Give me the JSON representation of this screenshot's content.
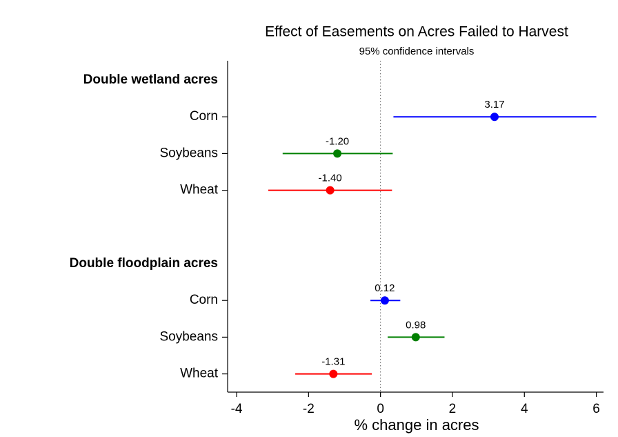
{
  "chart_data": {
    "type": "forest",
    "title": "Effect of Easements on Acres Failed to Harvest",
    "subtitle": "95% confidence intervals",
    "xlabel": "% change in acres",
    "colors": [
      "#0000ff",
      "#008000",
      "#ff0000"
    ],
    "groups": [
      {
        "name": "Double wetland acres",
        "categories": [
          "Corn",
          "Soybeans",
          "Wheat"
        ],
        "values": [
          3.17,
          -1.2,
          -1.4
        ],
        "value_labels": [
          "3.17",
          "-1.20",
          "-1.40"
        ],
        "lower": [
          0.36,
          -2.72,
          -3.12
        ],
        "upper": [
          6.0,
          0.34,
          0.32
        ]
      },
      {
        "name": "Double floodplain acres",
        "categories": [
          "Corn",
          "Soybeans",
          "Wheat"
        ],
        "values": [
          0.12,
          0.98,
          -1.31
        ],
        "value_labels": [
          "0.12",
          "0.98",
          "-1.31"
        ],
        "lower": [
          -0.28,
          0.2,
          -2.37
        ],
        "upper": [
          0.55,
          1.78,
          -0.24
        ]
      }
    ],
    "xlim": [
      -4.25,
      6.2
    ],
    "xticks": [
      -4,
      -2,
      0,
      2,
      4,
      6
    ],
    "zero_line": true
  }
}
